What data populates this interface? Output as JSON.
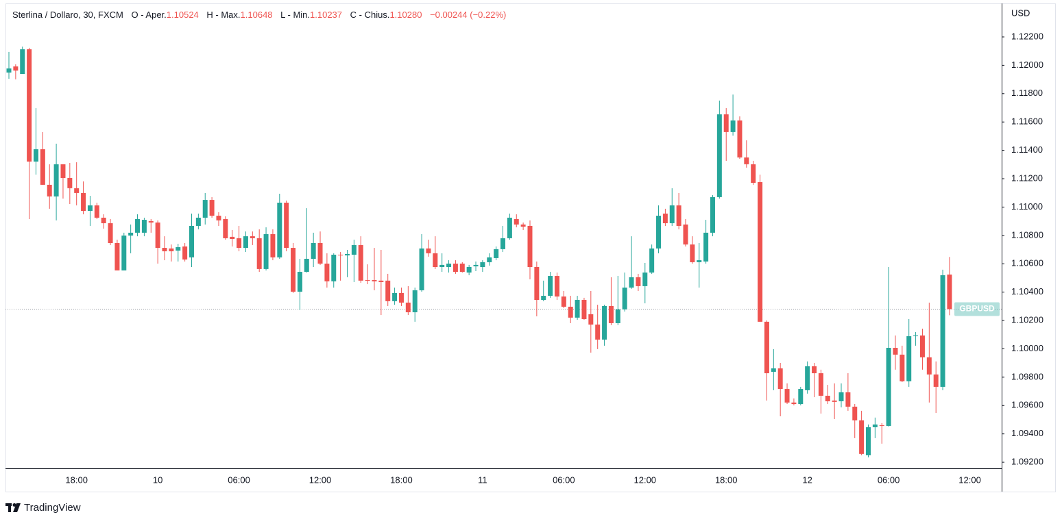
{
  "chart_data": {
    "type": "candlestick",
    "title": "Sterlina / Dollaro, 30, FXCM",
    "ohlc_legend": [
      {
        "label": "O - Aper.",
        "value": "1.10524"
      },
      {
        "label": "H - Max.",
        "value": "1.10648"
      },
      {
        "label": "L - Min.",
        "value": "1.10237"
      },
      {
        "label": "C - Chius.",
        "value": "1.10280"
      }
    ],
    "change": "−0.00244 (−0.22%)",
    "y_axis_label": "USD",
    "up_color": "#26a69a",
    "down_color": "#ef5350",
    "ylim": [
      1.09157,
      1.12422
    ],
    "yticks": [
      {
        "value": 1.092,
        "label": "1.09200"
      },
      {
        "value": 1.094,
        "label": "1.09400"
      },
      {
        "value": 1.096,
        "label": "1.09600"
      },
      {
        "value": 1.098,
        "label": "1.09800"
      },
      {
        "value": 1.1,
        "label": "1.10000"
      },
      {
        "value": 1.102,
        "label": "1.10200"
      },
      {
        "value": 1.104,
        "label": "1.10400"
      },
      {
        "value": 1.106,
        "label": "1.10600"
      },
      {
        "value": 1.108,
        "label": "1.10800"
      },
      {
        "value": 1.11,
        "label": "1.11000"
      },
      {
        "value": 1.112,
        "label": "1.11200"
      },
      {
        "value": 1.114,
        "label": "1.11400"
      },
      {
        "value": 1.116,
        "label": "1.11600"
      },
      {
        "value": 1.118,
        "label": "1.11800"
      },
      {
        "value": 1.12,
        "label": "1.12000"
      },
      {
        "value": 1.122,
        "label": "1.12200"
      }
    ],
    "grid": false,
    "price_line": {
      "value": 1.1028,
      "label": "GBPUSD",
      "color": "#26a69a"
    },
    "categories": [
      null,
      null,
      null,
      null,
      null,
      null,
      null,
      null,
      null,
      null,
      "18:00",
      null,
      null,
      null,
      null,
      null,
      null,
      null,
      null,
      null,
      null,
      null,
      "10",
      null,
      null,
      null,
      null,
      null,
      null,
      null,
      null,
      null,
      null,
      null,
      "06:00",
      null,
      null,
      null,
      null,
      null,
      null,
      null,
      null,
      null,
      null,
      null,
      "12:00",
      null,
      null,
      null,
      null,
      null,
      null,
      null,
      null,
      null,
      null,
      null,
      "18:00",
      null,
      null,
      null,
      null,
      null,
      null,
      null,
      null,
      null,
      null,
      null,
      "11",
      null,
      null,
      null,
      null,
      null,
      null,
      null,
      null,
      null,
      null,
      null,
      "06:00",
      null,
      null,
      null,
      null,
      null,
      null,
      null,
      null,
      null,
      null,
      null,
      "12:00",
      null,
      null,
      null,
      null,
      null,
      null,
      null,
      null,
      null,
      null,
      null,
      "18:00",
      null,
      null,
      null,
      null,
      null,
      null,
      null,
      null,
      null,
      null,
      null,
      "12",
      null,
      null,
      null,
      null,
      null,
      null,
      null,
      null,
      null,
      null,
      null,
      "06:00",
      null,
      null,
      null,
      null,
      null,
      null,
      null,
      null,
      null,
      null,
      null,
      "12:00"
    ],
    "open": [
      1.11949,
      1.11992,
      1.11939,
      1.12113,
      1.11321,
      1.11408,
      1.11157,
      1.11075,
      1.11302,
      1.11205,
      1.11133,
      1.11099,
      1.10973,
      1.11012,
      1.10925,
      1.10886,
      1.10746,
      1.10553,
      1.10799,
      1.10819,
      1.10819,
      1.10901,
      1.10891,
      1.10712,
      1.10708,
      1.10693,
      1.10722,
      1.10645,
      1.10867,
      1.10925,
      1.1105,
      1.10939,
      1.10915,
      1.1079,
      1.1078,
      1.10712,
      1.10794,
      1.1078,
      1.10563,
      1.10809,
      1.10645,
      1.11031,
      1.10712,
      1.10403,
      1.10543,
      1.10635,
      1.10746,
      1.10601,
      1.10476,
      1.10664,
      1.10659,
      1.10664,
      1.10732,
      1.10485,
      1.10485,
      1.10481,
      1.10481,
      1.10336,
      1.10394,
      1.10326,
      1.10258,
      1.10413,
      1.10708,
      1.10674,
      1.10577,
      1.10577,
      1.10601,
      1.10601,
      1.10538,
      1.10582,
      1.10577,
      1.10611,
      1.1064,
      1.10703,
      1.1078,
      1.10915,
      1.10877,
      1.10867,
      1.10577,
      1.10345,
      1.10374,
      1.10514,
      1.10369,
      1.10297,
      1.1022,
      1.10345,
      1.10244,
      1.10171,
      1.10065,
      1.10302,
      1.10181,
      1.10278,
      1.10432,
      1.10505,
      1.10442,
      1.10538,
      1.10708,
      1.10954,
      1.10886,
      1.11012,
      1.10877,
      1.10736,
      1.10611,
      1.10616,
      1.10819,
      1.1107,
      1.11654,
      1.11529,
      1.11611,
      1.1135,
      1.11302,
      1.11176,
      1.10191,
      1.09838,
      1.09862,
      1.09717,
      1.09621,
      1.09611,
      1.09708,
      1.09877,
      1.09828,
      1.09669,
      1.09635,
      1.0963,
      1.09693,
      1.09592,
      1.09495,
      1.09249,
      1.09447,
      1.09461,
      1.09456,
      1.10007,
      1.09959,
      1.09771,
      1.10089,
      1.10094,
      1.0994,
      1.09819,
      1.09732,
      1.10524,
      null,
      null,
      null
    ],
    "high": [
      1.12094,
      1.12007,
      1.12132,
      1.12123,
      1.11698,
      1.11529,
      1.11302,
      1.11447,
      1.11302,
      1.11311,
      1.11316,
      1.11181,
      1.11079,
      1.11031,
      1.10949,
      1.10915,
      1.1077,
      1.10819,
      1.10877,
      1.10949,
      1.10925,
      1.10915,
      1.10906,
      1.10794,
      1.10736,
      1.10741,
      1.10746,
      1.10954,
      1.10954,
      1.11099,
      1.1107,
      1.10964,
      1.10935,
      1.10838,
      1.10867,
      1.10828,
      1.10828,
      1.10843,
      1.10857,
      1.10843,
      1.11094,
      1.11046,
      1.10746,
      1.10635,
      1.10992,
      1.10819,
      1.10828,
      1.10674,
      1.10674,
      1.10683,
      1.10698,
      1.1077,
      1.10794,
      1.10596,
      1.10712,
      1.10698,
      1.10529,
      1.10432,
      1.10432,
      1.10442,
      1.10432,
      1.10809,
      1.1077,
      1.10794,
      1.10674,
      1.10625,
      1.10625,
      1.10611,
      1.10592,
      1.10616,
      1.10625,
      1.10674,
      1.10722,
      1.10867,
      1.10954,
      1.10949,
      1.10891,
      1.10906,
      1.10616,
      1.10481,
      1.10543,
      1.10538,
      1.10408,
      1.10374,
      1.10374,
      1.1036,
      1.10408,
      1.10311,
      1.10311,
      1.10505,
      1.10514,
      1.10538,
      1.10794,
      1.10529,
      1.10606,
      1.10736,
      1.11012,
      1.10988,
      1.11133,
      1.11099,
      1.10915,
      1.10794,
      1.10746,
      1.1091,
      1.11084,
      1.11751,
      1.11698,
      1.11794,
      1.1164,
      1.11471,
      1.11326,
      1.11229,
      1.102,
      1.09998,
      1.09901,
      1.09756,
      1.0965,
      1.09732,
      1.09911,
      1.09901,
      1.09853,
      1.09746,
      1.09756,
      1.09756,
      1.09828,
      1.09611,
      1.09563,
      1.09466,
      1.09515,
      1.09476,
      1.10577,
      1.10094,
      1.10022,
      1.1021,
      1.10118,
      1.10142,
      1.10326,
      1.09911,
      1.10558,
      1.10648,
      null,
      null,
      null
    ],
    "low": [
      1.11905,
      1.11901,
      1.11939,
      1.10915,
      1.11229,
      1.11157,
      1.10988,
      1.10906,
      1.1106,
      1.11021,
      1.11012,
      1.10949,
      1.10867,
      1.10915,
      1.10848,
      1.10732,
      1.10553,
      1.10553,
      1.10674,
      1.10794,
      1.10794,
      1.10819,
      1.10601,
      1.10625,
      1.10616,
      1.10616,
      1.10616,
      1.10577,
      1.10843,
      1.10877,
      1.10925,
      1.10867,
      1.1077,
      1.10722,
      1.10688,
      1.10683,
      1.10732,
      1.10543,
      1.10553,
      1.10625,
      1.10635,
      1.10688,
      1.10394,
      1.10273,
      1.10538,
      1.10577,
      1.10592,
      1.10432,
      1.10432,
      1.10481,
      1.10505,
      1.10471,
      1.10466,
      1.10456,
      1.10413,
      1.10239,
      1.10302,
      1.10311,
      1.10302,
      1.10239,
      1.10191,
      1.10403,
      1.1065,
      1.10563,
      1.10543,
      1.10538,
      1.10529,
      1.10538,
      1.10519,
      1.10548,
      1.10543,
      1.10587,
      1.10625,
      1.10683,
      1.1077,
      1.10857,
      1.10838,
      1.1049,
      1.10229,
      1.10336,
      1.1036,
      1.10345,
      1.10287,
      1.10181,
      1.10205,
      1.10205,
      1.09973,
      1.09998,
      1.10022,
      1.10167,
      1.10167,
      1.10263,
      1.10423,
      1.10408,
      1.10321,
      1.10529,
      1.10674,
      1.10867,
      1.10867,
      1.10843,
      1.10722,
      1.10601,
      1.10432,
      1.10601,
      1.10794,
      1.1106,
      1.11326,
      1.11504,
      1.1134,
      1.11278,
      1.11157,
      1.10191,
      1.09635,
      1.09708,
      1.09524,
      1.09611,
      1.09601,
      1.09601,
      1.09684,
      1.09659,
      1.09543,
      1.09611,
      1.09505,
      1.09587,
      1.09563,
      1.0937,
      1.09249,
      1.09234,
      1.0937,
      1.09331,
      1.09452,
      1.09853,
      1.09766,
      1.09732,
      1.10022,
      1.09853,
      1.09621,
      1.09548,
      1.09708,
      1.10237,
      null,
      null,
      null
    ],
    "close": [
      1.11978,
      1.11963,
      1.12113,
      1.11321,
      1.11408,
      1.11157,
      1.11075,
      1.11302,
      1.11205,
      1.11133,
      1.11099,
      1.10973,
      1.11012,
      1.10925,
      1.10886,
      1.10746,
      1.10553,
      1.10799,
      1.10819,
      1.10915,
      1.1091,
      1.10891,
      1.10712,
      1.10688,
      1.10688,
      1.10717,
      1.1063,
      1.10867,
      1.10925,
      1.1105,
      1.10939,
      1.10906,
      1.1078,
      1.10775,
      1.10712,
      1.10794,
      1.1078,
      1.10563,
      1.10809,
      1.10645,
      1.11031,
      1.10712,
      1.10403,
      1.10543,
      1.10635,
      1.10746,
      1.10601,
      1.10476,
      1.10664,
      1.10659,
      1.10669,
      1.10732,
      1.10481,
      1.10481,
      1.10476,
      1.10471,
      1.10336,
      1.10394,
      1.10326,
      1.10258,
      1.10413,
      1.10708,
      1.10674,
      1.10577,
      1.10592,
      1.10601,
      1.10543,
      1.10543,
      1.10577,
      1.10592,
      1.10611,
      1.10645,
      1.10703,
      1.1078,
      1.10925,
      1.10877,
      1.10862,
      1.10577,
      1.10345,
      1.10374,
      1.10514,
      1.10369,
      1.10297,
      1.1022,
      1.10345,
      1.1021,
      1.10171,
      1.10065,
      1.10302,
      1.10181,
      1.10278,
      1.10432,
      1.10505,
      1.10442,
      1.10538,
      1.10708,
      1.10939,
      1.10886,
      1.11012,
      1.10867,
      1.10736,
      1.10611,
      1.10625,
      1.10819,
      1.1107,
      1.11654,
      1.11529,
      1.11611,
      1.1135,
      1.11302,
      1.11171,
      1.10191,
      1.09828,
      1.09862,
      1.09717,
      1.09621,
      1.09611,
      1.09717,
      1.09877,
      1.09828,
      1.09669,
      1.0963,
      1.09626,
      1.09693,
      1.09592,
      1.09495,
      1.09259,
      1.09447,
      1.09466,
      1.09456,
      1.10007,
      1.09959,
      1.09771,
      1.10089,
      1.10094,
      1.0994,
      1.09819,
      1.09732,
      1.10519,
      1.1028,
      null,
      null,
      null
    ]
  },
  "footer": {
    "brand": "TradingView"
  }
}
